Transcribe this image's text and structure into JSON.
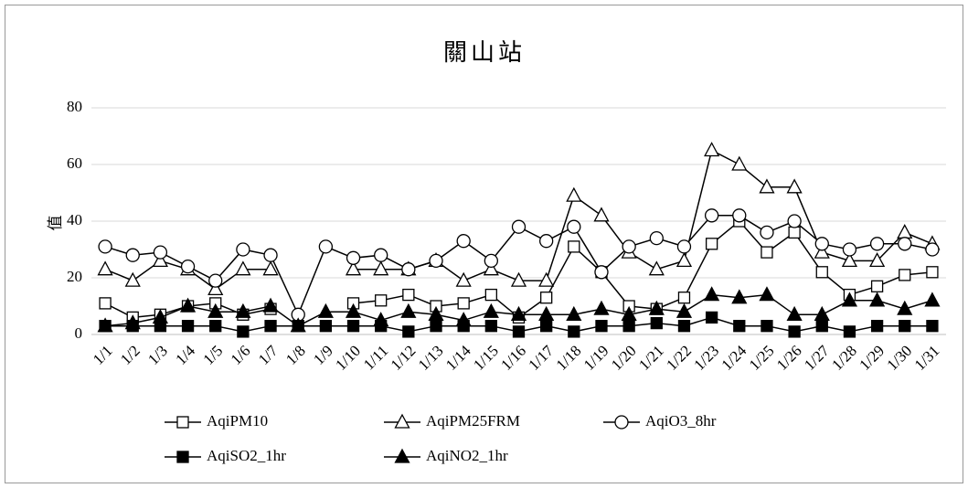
{
  "chart_data": {
    "type": "line",
    "title": "關山站",
    "y_label": "值",
    "categories": [
      "1/1",
      "1/2",
      "1/3",
      "1/4",
      "1/5",
      "1/6",
      "1/7",
      "1/8",
      "1/9",
      "1/10",
      "1/11",
      "1/12",
      "1/13",
      "1/14",
      "1/15",
      "1/16",
      "1/17",
      "1/18",
      "1/19",
      "1/20",
      "1/21",
      "1/22",
      "1/23",
      "1/24",
      "1/25",
      "1/26",
      "1/27",
      "1/28",
      "1/29",
      "1/30",
      "1/31"
    ],
    "ylim": [
      0,
      80
    ],
    "yticks": [
      0,
      20,
      40,
      60,
      80
    ],
    "grid": true,
    "series": [
      {
        "name": "AqiPM10",
        "color": "#000000",
        "marker": "square",
        "filled": false,
        "values": [
          11,
          6,
          7,
          10,
          11,
          7,
          9,
          null,
          null,
          11,
          12,
          14,
          10,
          11,
          14,
          6,
          13,
          31,
          22,
          10,
          9,
          13,
          32,
          40,
          29,
          36,
          22,
          14,
          17,
          21,
          22
        ]
      },
      {
        "name": "AqiPM25FRM",
        "color": "#000000",
        "marker": "triangle",
        "filled": false,
        "values": [
          23,
          19,
          26,
          23,
          16,
          23,
          23,
          null,
          null,
          23,
          23,
          23,
          26,
          19,
          23,
          19,
          19,
          49,
          42,
          29,
          23,
          26,
          65,
          60,
          52,
          52,
          29,
          26,
          26,
          36,
          32
        ]
      },
      {
        "name": "AqiO3_8hr",
        "color": "#000000",
        "marker": "circle",
        "filled": false,
        "values": [
          31,
          28,
          29,
          24,
          19,
          30,
          28,
          7,
          31,
          27,
          28,
          23,
          26,
          33,
          26,
          38,
          33,
          38,
          22,
          31,
          34,
          31,
          42,
          42,
          36,
          40,
          32,
          30,
          32,
          32,
          30
        ]
      },
      {
        "name": "AqiSO2_1hr",
        "color": "#000000",
        "marker": "square",
        "filled": true,
        "values": [
          3,
          3,
          3,
          3,
          3,
          1,
          3,
          3,
          3,
          3,
          3,
          1,
          3,
          3,
          3,
          1,
          3,
          1,
          3,
          3,
          4,
          3,
          6,
          3,
          3,
          1,
          3,
          1,
          3,
          3,
          3
        ]
      },
      {
        "name": "AqiNO2_1hr",
        "color": "#000000",
        "marker": "triangle",
        "filled": true,
        "values": [
          3,
          4,
          6,
          10,
          8,
          8,
          10,
          3,
          8,
          8,
          5,
          8,
          7,
          5,
          8,
          7,
          7,
          7,
          9,
          7,
          9,
          8,
          14,
          13,
          14,
          7,
          7,
          12,
          12,
          9,
          12
        ]
      }
    ]
  }
}
